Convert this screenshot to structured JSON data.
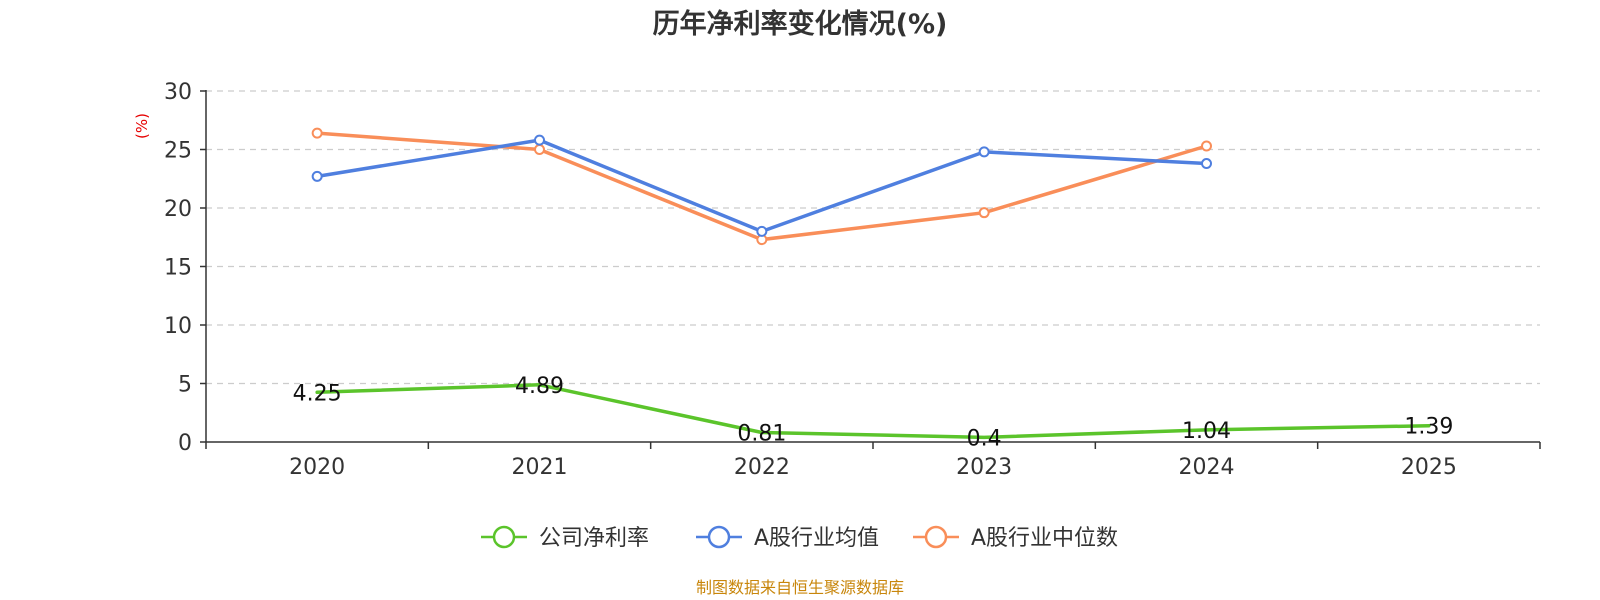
{
  "chart_data": {
    "type": "line",
    "title": "历年净利率变化情况(%)",
    "y_unit_label": "(%)",
    "categories": [
      "2020",
      "2021",
      "2022",
      "2023",
      "2024",
      "2025"
    ],
    "ylim": [
      0,
      30
    ],
    "yticks": [
      0,
      5,
      10,
      15,
      20,
      25,
      30
    ],
    "grid": true,
    "legend_position": "bottom-center",
    "series": [
      {
        "name": "公司净利率",
        "color": "#5bc42b",
        "values": [
          4.25,
          4.89,
          0.81,
          0.4,
          1.04,
          1.39
        ],
        "labels": [
          "4.25",
          "4.89",
          "0.81",
          "0.4",
          "1.04",
          "1.39"
        ],
        "show_labels": true,
        "show_markers": false
      },
      {
        "name": "A股行业均值",
        "color": "#4f7fdf",
        "values": [
          22.7,
          25.8,
          18.0,
          24.8,
          23.8,
          null
        ],
        "show_labels": false,
        "show_markers": true
      },
      {
        "name": "A股行业中位数",
        "color": "#f98e59",
        "values": [
          26.4,
          25.0,
          17.3,
          19.6,
          25.3,
          null
        ],
        "show_labels": false,
        "show_markers": true
      }
    ],
    "source": "制图数据来自恒生聚源数据库"
  }
}
